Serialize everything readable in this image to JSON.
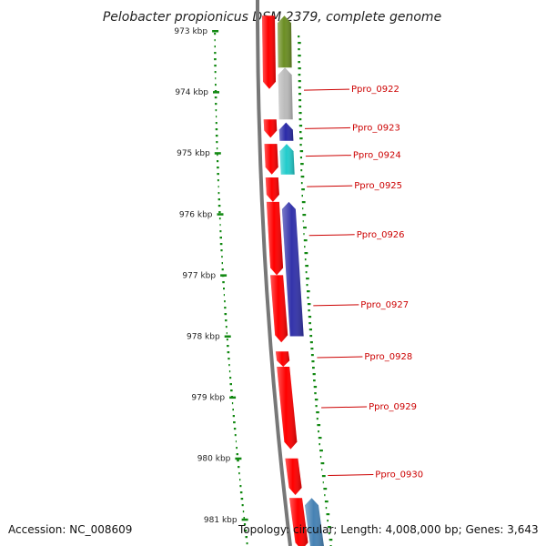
{
  "title": "Pelobacter propionicus DSM 2379, complete genome",
  "footer": {
    "accession": "Accession: NC_008609",
    "topology": "Topology: circular; Length: 4,008,000 bp; Genes: 3,643"
  },
  "colors": {
    "gc_dots": "#118811",
    "backbone": "#777777",
    "label": "#cc0000",
    "forward_gene": "#ff0000"
  },
  "ticks": [
    "973 kbp",
    "974 kbp",
    "975 kbp",
    "976 kbp",
    "977 kbp",
    "978 kbp",
    "979 kbp",
    "980 kbp",
    "981 kbp"
  ],
  "tick_values_kbp": [
    973,
    974,
    975,
    976,
    977,
    978,
    979,
    980,
    981
  ],
  "genes": [
    {
      "name": "",
      "strand": "+",
      "start_kbp": 972.75,
      "end_kbp": 973.95,
      "color": "#ff0000"
    },
    {
      "name": "",
      "strand": "-",
      "start_kbp": 972.75,
      "end_kbp": 973.6,
      "color": "#6b8e23"
    },
    {
      "name": "Ppro_0922",
      "strand": "-",
      "start_kbp": 973.6,
      "end_kbp": 974.45,
      "color": "#bbbbbb"
    },
    {
      "name": "",
      "strand": "+",
      "start_kbp": 974.45,
      "end_kbp": 974.75,
      "color": "#ff0000"
    },
    {
      "name": "Ppro_0923",
      "strand": "-",
      "start_kbp": 974.5,
      "end_kbp": 974.8,
      "color": "#2a2aa8"
    },
    {
      "name": "",
      "strand": "+",
      "start_kbp": 974.85,
      "end_kbp": 975.35,
      "color": "#ff0000"
    },
    {
      "name": "Ppro_0924",
      "strand": "-",
      "start_kbp": 974.85,
      "end_kbp": 975.35,
      "color": "#22cccc"
    },
    {
      "name": "Ppro_0925",
      "strand": "+",
      "start_kbp": 975.4,
      "end_kbp": 975.8,
      "color": "#ff0000"
    },
    {
      "name": "",
      "strand": "+",
      "start_kbp": 975.8,
      "end_kbp": 977.0,
      "color": "#ff0000"
    },
    {
      "name": "Ppro_0926",
      "strand": "-",
      "start_kbp": 975.8,
      "end_kbp": 978.0,
      "color": "#3333aa"
    },
    {
      "name": "Ppro_0927",
      "strand": "+",
      "start_kbp": 977.0,
      "end_kbp": 978.1,
      "color": "#ff0000"
    },
    {
      "name": "Ppro_0928",
      "strand": "+",
      "start_kbp": 978.25,
      "end_kbp": 978.5,
      "color": "#ff0000"
    },
    {
      "name": "Ppro_0929",
      "strand": "+",
      "start_kbp": 978.5,
      "end_kbp": 979.85,
      "color": "#ff0000"
    },
    {
      "name": "Ppro_0930",
      "strand": "+",
      "start_kbp": 980.0,
      "end_kbp": 980.6,
      "color": "#ff0000"
    },
    {
      "name": "",
      "strand": "+",
      "start_kbp": 980.65,
      "end_kbp": 981.5,
      "color": "#ff0000"
    },
    {
      "name": "",
      "strand": "-",
      "start_kbp": 980.65,
      "end_kbp": 981.5,
      "color": "#4682b4"
    }
  ],
  "gene_labels": [
    {
      "name": "Ppro_0922",
      "at_kbp": 973.97
    },
    {
      "name": "Ppro_0923",
      "at_kbp": 974.6
    },
    {
      "name": "Ppro_0924",
      "at_kbp": 975.05
    },
    {
      "name": "Ppro_0925",
      "at_kbp": 975.55
    },
    {
      "name": "Ppro_0926",
      "at_kbp": 976.35
    },
    {
      "name": "Ppro_0927",
      "at_kbp": 977.5
    },
    {
      "name": "Ppro_0928",
      "at_kbp": 978.35
    },
    {
      "name": "Ppro_0929",
      "at_kbp": 979.17
    },
    {
      "name": "Ppro_0930",
      "at_kbp": 980.28
    }
  ]
}
